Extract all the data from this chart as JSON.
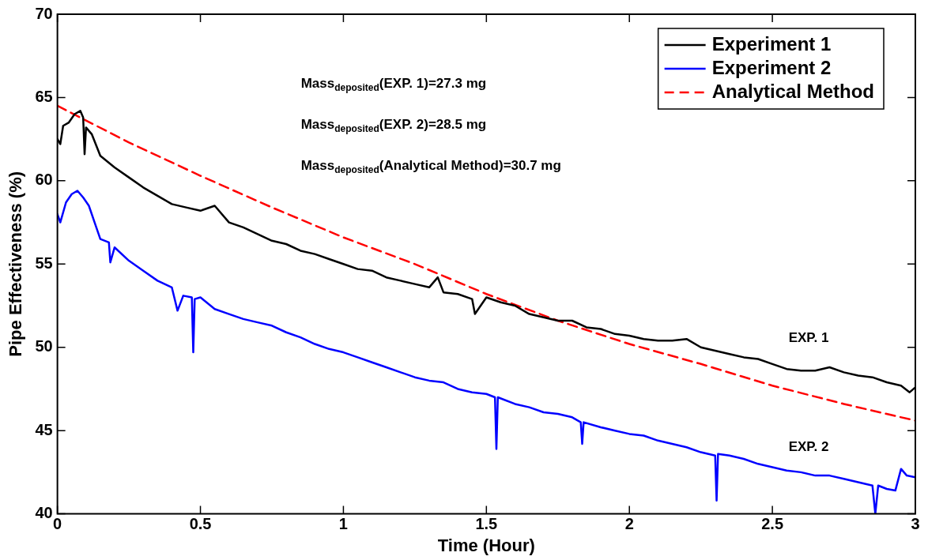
{
  "chart_data": {
    "type": "line",
    "xlabel": "Time (Hour)",
    "ylabel": "Pipe Effectiveness (%)",
    "xlim": [
      0,
      3
    ],
    "xticks": [
      0,
      0.5,
      1,
      1.5,
      2,
      2.5,
      3
    ],
    "ylim": [
      40,
      70
    ],
    "yticks": [
      40,
      45,
      50,
      55,
      60,
      65,
      70
    ],
    "legend": "top right",
    "marker": "none",
    "series": [
      {
        "name": "Experiment 1",
        "color": "#000000",
        "line_style": "solid",
        "x": [
          0,
          0.01,
          0.02,
          0.04,
          0.06,
          0.08,
          0.09,
          0.095,
          0.1,
          0.12,
          0.15,
          0.2,
          0.25,
          0.3,
          0.35,
          0.4,
          0.45,
          0.5,
          0.55,
          0.6,
          0.65,
          0.7,
          0.75,
          0.8,
          0.85,
          0.9,
          0.95,
          1,
          1.05,
          1.1,
          1.15,
          1.2,
          1.25,
          1.3,
          1.33,
          1.35,
          1.4,
          1.45,
          1.46,
          1.5,
          1.55,
          1.6,
          1.65,
          1.7,
          1.75,
          1.8,
          1.85,
          1.9,
          1.95,
          2,
          2.05,
          2.1,
          2.15,
          2.2,
          2.25,
          2.3,
          2.35,
          2.4,
          2.45,
          2.5,
          2.55,
          2.6,
          2.65,
          2.7,
          2.75,
          2.8,
          2.85,
          2.9,
          2.95,
          2.98,
          3
        ],
        "values": [
          62.5,
          62.2,
          63.3,
          63.5,
          64,
          64.2,
          63.8,
          61.6,
          63.2,
          62.8,
          61.5,
          60.8,
          60.2,
          59.6,
          59.1,
          58.6,
          58.4,
          58.2,
          58.5,
          57.5,
          57.2,
          56.8,
          56.4,
          56.2,
          55.8,
          55.6,
          55.3,
          55,
          54.7,
          54.6,
          54.2,
          54,
          53.8,
          53.6,
          54.2,
          53.3,
          53.2,
          52.9,
          52,
          53,
          52.7,
          52.5,
          52,
          51.8,
          51.6,
          51.6,
          51.2,
          51.1,
          50.8,
          50.7,
          50.5,
          50.4,
          50.4,
          50.5,
          50,
          49.8,
          49.6,
          49.4,
          49.3,
          49,
          48.7,
          48.6,
          48.6,
          48.8,
          48.5,
          48.3,
          48.2,
          47.9,
          47.7,
          47.3,
          47.6
        ]
      },
      {
        "name": "Experiment 2",
        "color": "#0000ff",
        "line_style": "solid",
        "x": [
          0,
          0.01,
          0.03,
          0.05,
          0.07,
          0.09,
          0.11,
          0.13,
          0.15,
          0.18,
          0.185,
          0.2,
          0.25,
          0.3,
          0.35,
          0.4,
          0.42,
          0.44,
          0.47,
          0.475,
          0.48,
          0.5,
          0.55,
          0.6,
          0.65,
          0.7,
          0.75,
          0.8,
          0.85,
          0.9,
          0.95,
          1,
          1.05,
          1.1,
          1.15,
          1.2,
          1.25,
          1.3,
          1.35,
          1.4,
          1.45,
          1.5,
          1.53,
          1.535,
          1.54,
          1.6,
          1.65,
          1.7,
          1.75,
          1.8,
          1.83,
          1.835,
          1.84,
          1.9,
          1.95,
          2,
          2.05,
          2.1,
          2.15,
          2.2,
          2.25,
          2.3,
          2.305,
          2.31,
          2.35,
          2.4,
          2.45,
          2.5,
          2.55,
          2.6,
          2.65,
          2.7,
          2.75,
          2.8,
          2.85,
          2.86,
          2.87,
          2.9,
          2.93,
          2.95,
          2.97,
          3
        ],
        "values": [
          58,
          57.5,
          58.7,
          59.2,
          59.4,
          59,
          58.5,
          57.5,
          56.5,
          56.3,
          55.1,
          56,
          55.2,
          54.6,
          54,
          53.6,
          52.2,
          53.1,
          53,
          49.7,
          52.9,
          53,
          52.3,
          52,
          51.7,
          51.5,
          51.3,
          50.9,
          50.6,
          50.2,
          49.9,
          49.7,
          49.4,
          49.1,
          48.8,
          48.5,
          48.2,
          48,
          47.9,
          47.5,
          47.3,
          47.2,
          47,
          43.9,
          47,
          46.6,
          46.4,
          46.1,
          46,
          45.8,
          45.5,
          44.2,
          45.5,
          45.2,
          45,
          44.8,
          44.7,
          44.4,
          44.2,
          44,
          43.7,
          43.5,
          40.8,
          43.6,
          43.5,
          43.3,
          43,
          42.8,
          42.6,
          42.5,
          42.3,
          42.3,
          42.1,
          41.9,
          41.7,
          40,
          41.7,
          41.5,
          41.4,
          42.7,
          42.3,
          42.2
        ]
      },
      {
        "name": "Analytical Method",
        "color": "#ff0000",
        "line_style": "dashed",
        "x": [
          0,
          0.25,
          0.5,
          0.75,
          1,
          1.25,
          1.5,
          1.75,
          2,
          2.25,
          2.5,
          2.75,
          3
        ],
        "values": [
          64.5,
          62.3,
          60.3,
          58.4,
          56.6,
          55,
          53.2,
          51.6,
          50.2,
          49,
          47.7,
          46.6,
          45.6
        ]
      }
    ],
    "annotations": [
      "Mass$_{deposited}$(EXP. 1)=27.3 mg",
      "Mass$_{deposited}$(EXP. 2)=28.5 mg",
      "Mass$_{deposited}$(Analytical Method)=30.7 mg",
      "EXP. 1",
      "EXP. 2"
    ]
  }
}
